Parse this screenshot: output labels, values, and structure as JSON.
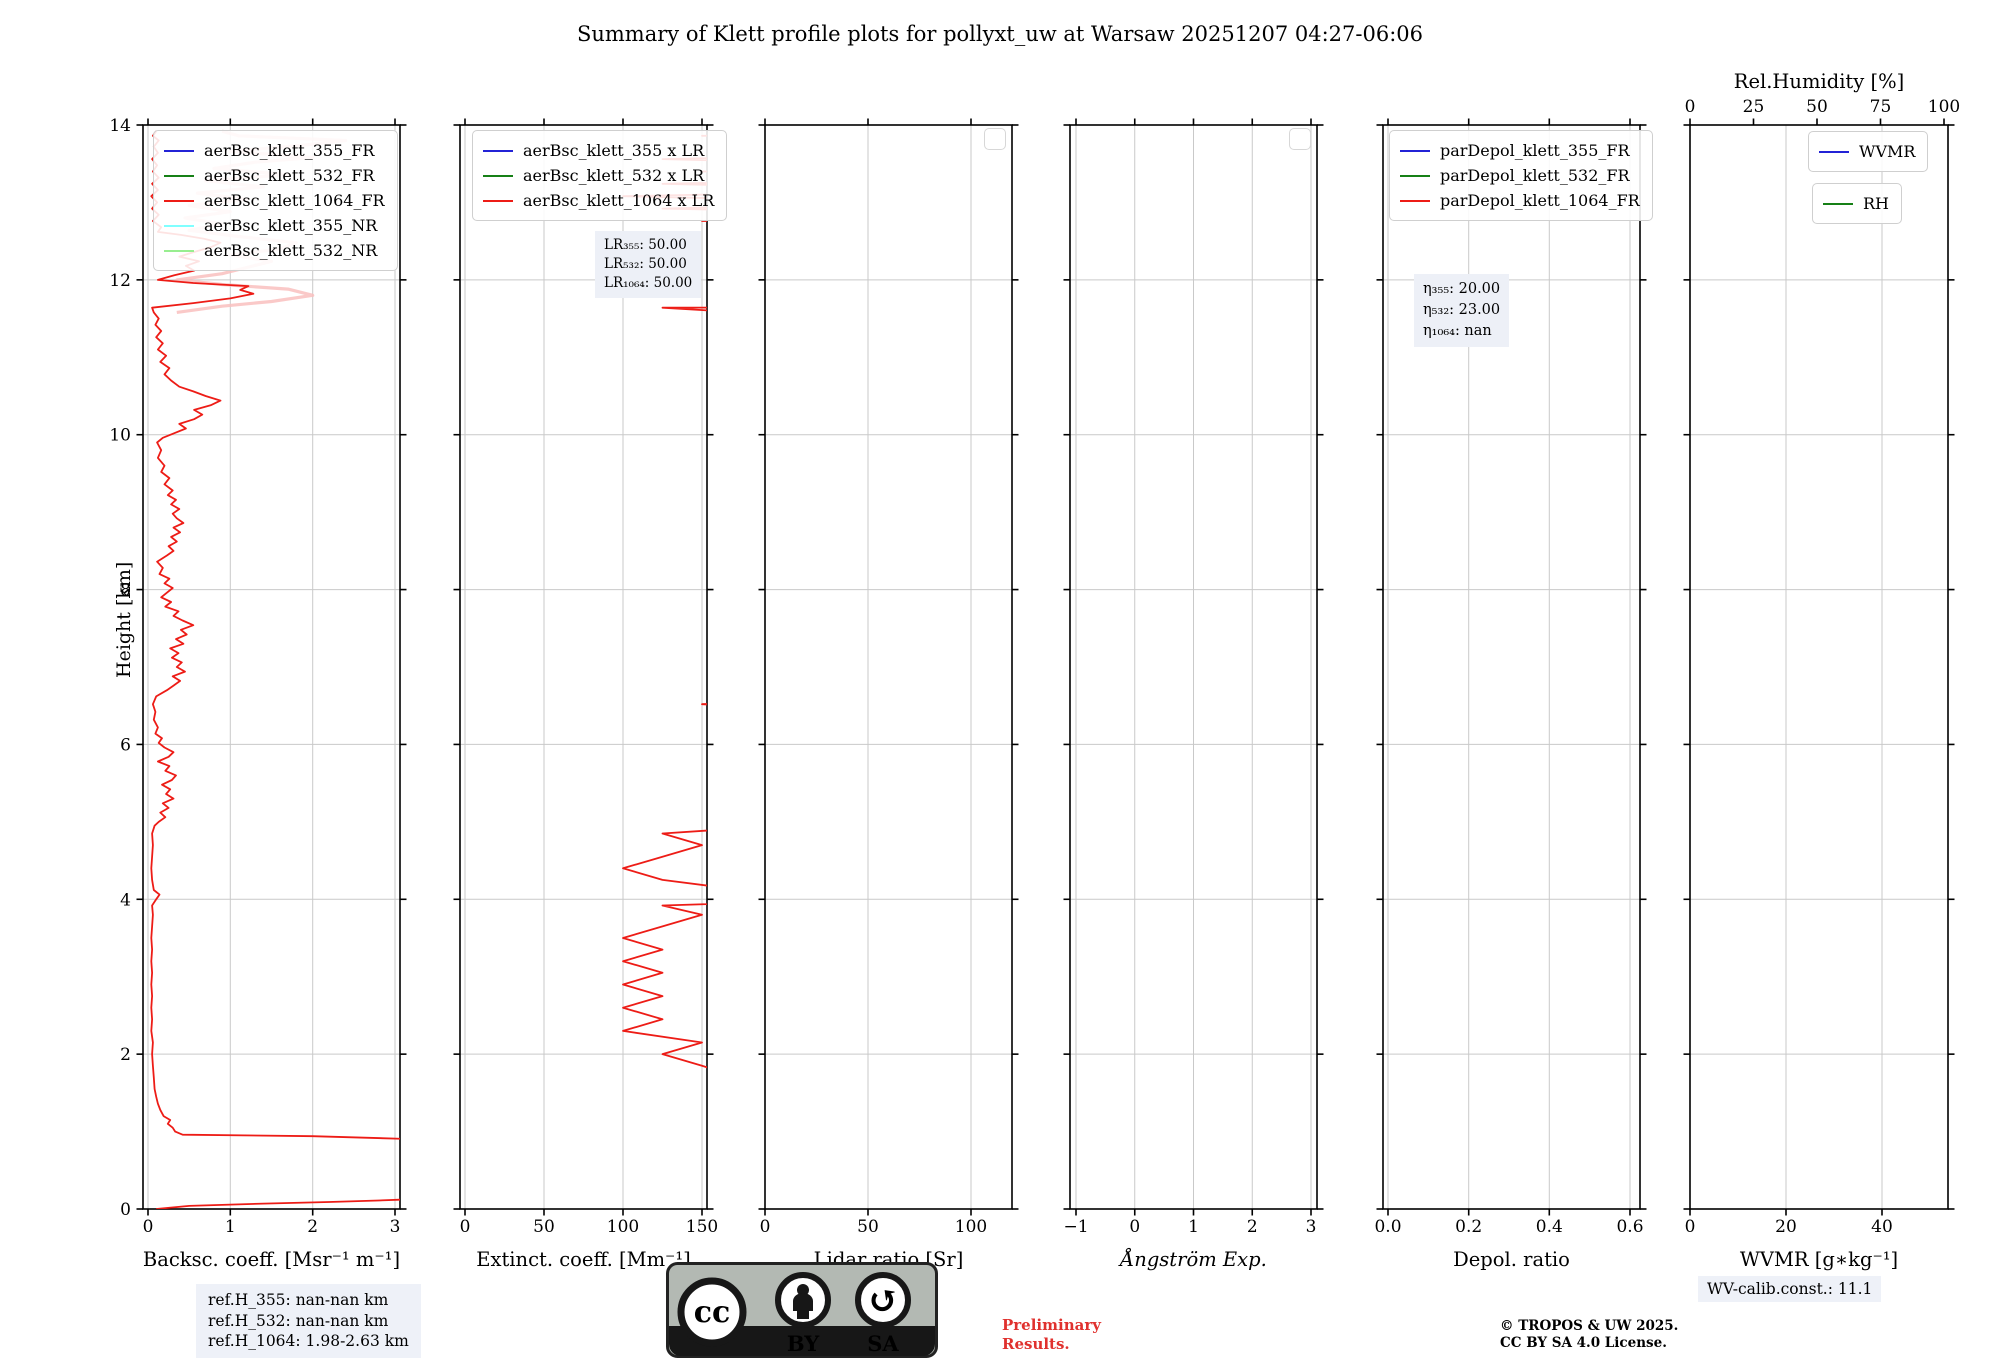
{
  "title": "Summary of Klett profile plots for pollyxt_uw at Warsaw 20251207 04:27-06:06",
  "ylabel": "Height [km]",
  "yticks": [
    "0",
    "2",
    "4",
    "6",
    "8",
    "10",
    "12",
    "14"
  ],
  "plots": [
    {
      "id": "backsc",
      "xlabel": "Backsc. coeff. [Msr⁻¹ m⁻¹]",
      "xticks": [
        "0",
        "1",
        "2",
        "3"
      ],
      "legend": [
        {
          "label": "aerBsc_klett_355_FR",
          "color": "#2323d6"
        },
        {
          "label": "aerBsc_klett_532_FR",
          "color": "#168016"
        },
        {
          "label": "aerBsc_klett_1064_FR",
          "color": "#ed1c16"
        },
        {
          "label": "aerBsc_klett_355_NR",
          "color": "#80ffff"
        },
        {
          "label": "aerBsc_klett_532_NR",
          "color": "#98ee90"
        }
      ]
    },
    {
      "id": "extinct",
      "xlabel": "Extinct. coeff. [Mm⁻¹]",
      "xticks": [
        "0",
        "50",
        "100",
        "150"
      ],
      "legend": [
        {
          "label": "aerBsc_klett_355 x LR",
          "color": "#2323d6"
        },
        {
          "label": "aerBsc_klett_532 x LR",
          "color": "#168016"
        },
        {
          "label": "aerBsc_klett_1064 x LR",
          "color": "#ed1c16"
        }
      ],
      "annotation": [
        "LR₃₅₅: 50.00",
        "LR₅₃₂: 50.00",
        "LR₁₀₆₄: 50.00"
      ]
    },
    {
      "id": "lidar-ratio",
      "xlabel": "Lidar ratio [Sr]",
      "xticks": [
        "0",
        "50",
        "100"
      ],
      "empty_legend": true
    },
    {
      "id": "angstrom",
      "xlabel": "Ångström Exp.",
      "xticks": [
        "−1",
        "0",
        "1",
        "2",
        "3"
      ],
      "empty_legend": true
    },
    {
      "id": "depol",
      "xlabel": "Depol. ratio",
      "xticks": [
        "0.0",
        "0.2",
        "0.4",
        "0.6"
      ],
      "legend": [
        {
          "label": "parDepol_klett_355_FR",
          "color": "#2323d6"
        },
        {
          "label": "parDepol_klett_532_FR",
          "color": "#168016"
        },
        {
          "label": "parDepol_klett_1064_FR",
          "color": "#ed1c16"
        }
      ],
      "annotation": [
        "η₃₅₅: 20.00",
        "η₅₃₂: 23.00",
        "η₁₀₆₄: nan"
      ]
    },
    {
      "id": "wvmr",
      "xlabel": "WVMR [g∗kg⁻¹]",
      "xticks": [
        "0",
        "20",
        "40"
      ],
      "top_axis": {
        "label": "Rel.Humidity [%]",
        "ticks": [
          "0",
          "25",
          "50",
          "75",
          "100"
        ]
      },
      "legend_wvmr": [
        {
          "label": "WVMR",
          "color": "#2323d6"
        }
      ],
      "legend_rh": [
        {
          "label": "RH",
          "color": "#168016"
        }
      ]
    }
  ],
  "footer": {
    "ref_lines": [
      "ref.H_355: nan-nan km",
      "ref.H_532: nan-nan km",
      "ref.H_1064: 1.98-2.63 km"
    ],
    "cc_badge": {
      "cc": "cc",
      "by": "BY",
      "sa": "SA"
    },
    "preliminary": [
      "Preliminary",
      "Results."
    ],
    "copyright": [
      "© TROPOS & UW 2025.",
      "CC BY SA 4.0 License."
    ],
    "wv_calib": "WV-calib.const.: 11.1"
  },
  "chart_data": {
    "type": "line",
    "ylabel": "Height [km]",
    "ylim": [
      0,
      14
    ],
    "grid": true,
    "panels": [
      {
        "xlabel": "Backsc. coeff. [Msr⁻¹ m⁻¹]",
        "xlim": [
          0,
          3
        ],
        "xticks": [
          0,
          1,
          2,
          3
        ],
        "visible_series": [
          "aerBsc_klett_1064_FR"
        ]
      },
      {
        "xlabel": "Extinct. coeff. [Mm⁻¹]",
        "xlim": [
          0,
          150
        ],
        "xticks": [
          0,
          50,
          100,
          150
        ],
        "visible_series": [
          "aerBsc_klett_1064 x LR"
        ],
        "lidar_ratio_assumed": 50
      },
      {
        "xlabel": "Lidar ratio [Sr]",
        "xlim": [
          0,
          120
        ],
        "xticks": [
          0,
          50,
          100
        ],
        "visible_series": []
      },
      {
        "xlabel": "Ångström Exp.",
        "xlim": [
          -1,
          3
        ],
        "xticks": [
          -1,
          0,
          1,
          2,
          3
        ],
        "visible_series": []
      },
      {
        "xlabel": "Depol. ratio",
        "xlim": [
          0,
          0.62
        ],
        "xticks": [
          0.0,
          0.2,
          0.4,
          0.6
        ],
        "visible_series": []
      },
      {
        "xlabel": "WVMR [g∗kg⁻¹]",
        "xlim": [
          0,
          54
        ],
        "xticks": [
          0,
          20,
          40
        ],
        "top_xlabel": "Rel.Humidity [%]",
        "top_xlim": [
          0,
          100
        ],
        "top_xticks": [
          0,
          25,
          50,
          75,
          100
        ],
        "visible_series": []
      }
    ],
    "profile_heights_km": [
      0.0,
      0.04,
      0.07,
      0.09,
      0.11,
      0.13,
      0.9,
      0.94,
      0.96,
      1.0,
      1.05,
      1.1,
      1.15,
      1.2,
      1.28,
      1.36,
      1.45,
      1.55,
      1.7,
      1.85,
      2.0,
      2.15,
      2.3,
      2.45,
      2.6,
      2.75,
      2.9,
      3.05,
      3.2,
      3.35,
      3.5,
      3.65,
      3.8,
      3.92,
      4.0,
      4.06,
      4.12,
      4.25,
      4.4,
      4.55,
      4.7,
      4.85,
      4.95,
      5.0,
      5.06,
      5.12,
      5.18,
      5.24,
      5.3,
      5.36,
      5.42,
      5.48,
      5.54,
      5.6,
      5.66,
      5.72,
      5.78,
      5.84,
      5.9,
      5.96,
      6.02,
      6.08,
      6.14,
      6.22,
      6.32,
      6.42,
      6.52,
      6.62,
      6.7,
      6.76,
      6.82,
      6.88,
      6.94,
      7.0,
      7.06,
      7.12,
      7.18,
      7.24,
      7.3,
      7.36,
      7.42,
      7.48,
      7.54,
      7.6,
      7.66,
      7.72,
      7.78,
      7.84,
      7.9,
      7.96,
      8.02,
      8.08,
      8.14,
      8.2,
      8.28,
      8.36,
      8.44,
      8.5,
      8.56,
      8.62,
      8.68,
      8.74,
      8.8,
      8.86,
      8.92,
      8.98,
      9.04,
      9.1,
      9.16,
      9.22,
      9.28,
      9.36,
      9.44,
      9.52,
      9.6,
      9.7,
      9.8,
      9.9,
      9.96,
      10.02,
      10.08,
      10.14,
      10.2,
      10.26,
      10.32,
      10.38,
      10.44,
      10.5,
      10.56,
      10.62,
      10.7,
      10.78,
      10.86,
      10.94,
      11.02,
      11.1,
      11.18,
      11.26,
      11.34,
      11.42,
      11.5,
      11.58,
      11.64,
      11.7,
      11.76,
      11.82,
      11.87,
      11.92,
      11.96,
      12.0,
      12.06,
      12.12,
      12.18,
      12.24,
      12.3,
      12.36,
      12.42,
      12.48,
      12.53,
      12.58,
      12.62,
      12.68,
      12.76,
      12.84,
      12.92,
      13.0,
      13.08,
      13.16,
      13.24,
      13.32,
      13.4,
      13.48,
      13.56,
      13.64,
      13.72,
      13.8,
      13.86,
      13.92
    ],
    "backsc_1064_Msr_m": [
      0.1,
      0.5,
      1.4,
      2.2,
      2.8,
      3.3,
      3.3,
      2.0,
      0.42,
      0.33,
      0.3,
      0.24,
      0.27,
      0.19,
      0.15,
      0.12,
      0.1,
      0.08,
      0.07,
      0.06,
      0.05,
      0.06,
      0.04,
      0.05,
      0.04,
      0.05,
      0.04,
      0.05,
      0.04,
      0.05,
      0.04,
      0.05,
      0.06,
      0.05,
      0.1,
      0.14,
      0.07,
      0.05,
      0.04,
      0.05,
      0.06,
      0.05,
      0.08,
      0.13,
      0.21,
      0.15,
      0.25,
      0.18,
      0.31,
      0.22,
      0.27,
      0.17,
      0.29,
      0.34,
      0.21,
      0.26,
      0.12,
      0.25,
      0.31,
      0.2,
      0.13,
      0.17,
      0.09,
      0.12,
      0.07,
      0.09,
      0.06,
      0.1,
      0.23,
      0.31,
      0.39,
      0.3,
      0.45,
      0.35,
      0.41,
      0.29,
      0.37,
      0.27,
      0.43,
      0.34,
      0.47,
      0.4,
      0.55,
      0.42,
      0.31,
      0.37,
      0.21,
      0.28,
      0.16,
      0.23,
      0.3,
      0.2,
      0.26,
      0.14,
      0.18,
      0.11,
      0.23,
      0.31,
      0.25,
      0.35,
      0.28,
      0.39,
      0.31,
      0.43,
      0.35,
      0.3,
      0.38,
      0.28,
      0.34,
      0.24,
      0.3,
      0.2,
      0.26,
      0.16,
      0.2,
      0.12,
      0.16,
      0.11,
      0.18,
      0.32,
      0.46,
      0.38,
      0.56,
      0.66,
      0.56,
      0.76,
      0.88,
      0.7,
      0.55,
      0.38,
      0.28,
      0.2,
      0.26,
      0.15,
      0.22,
      0.12,
      0.18,
      0.1,
      0.16,
      0.09,
      0.13,
      0.07,
      0.05,
      0.55,
      1.0,
      1.28,
      1.12,
      1.22,
      0.55,
      0.12,
      0.32,
      0.56,
      0.46,
      0.62,
      0.38,
      0.56,
      0.76,
      0.88,
      0.68,
      0.4,
      0.12,
      0.16,
      0.06,
      0.13,
      0.05,
      0.11,
      0.04,
      0.12,
      0.05,
      0.13,
      0.06,
      0.11,
      0.05,
      0.12,
      0.07,
      0.13,
      0.06,
      0.1
    ],
    "uncertainty_heights_km": [
      11.58,
      11.66,
      11.72,
      11.8,
      11.88,
      11.94,
      12.0,
      12.08,
      12.16,
      12.24,
      12.32,
      12.4,
      12.48,
      12.56,
      12.64,
      12.72,
      12.8,
      12.88,
      12.96,
      13.04,
      13.12,
      13.2,
      13.28,
      13.36,
      13.44,
      13.52,
      13.58,
      13.66,
      13.74,
      13.8,
      13.86,
      13.92
    ],
    "uncertainty_backsc": [
      0.35,
      0.9,
      1.5,
      2.0,
      1.7,
      0.9,
      0.35,
      0.9,
      1.2,
      1.5,
      1.0,
      1.6,
      1.8,
      1.1,
      0.5,
      0.9,
      0.45,
      1.0,
      0.5,
      1.2,
      0.6,
      1.4,
      0.7,
      1.7,
      0.8,
      1.3,
      2.0,
      1.0,
      1.9,
      2.4,
      1.1,
      0.9
    ]
  }
}
